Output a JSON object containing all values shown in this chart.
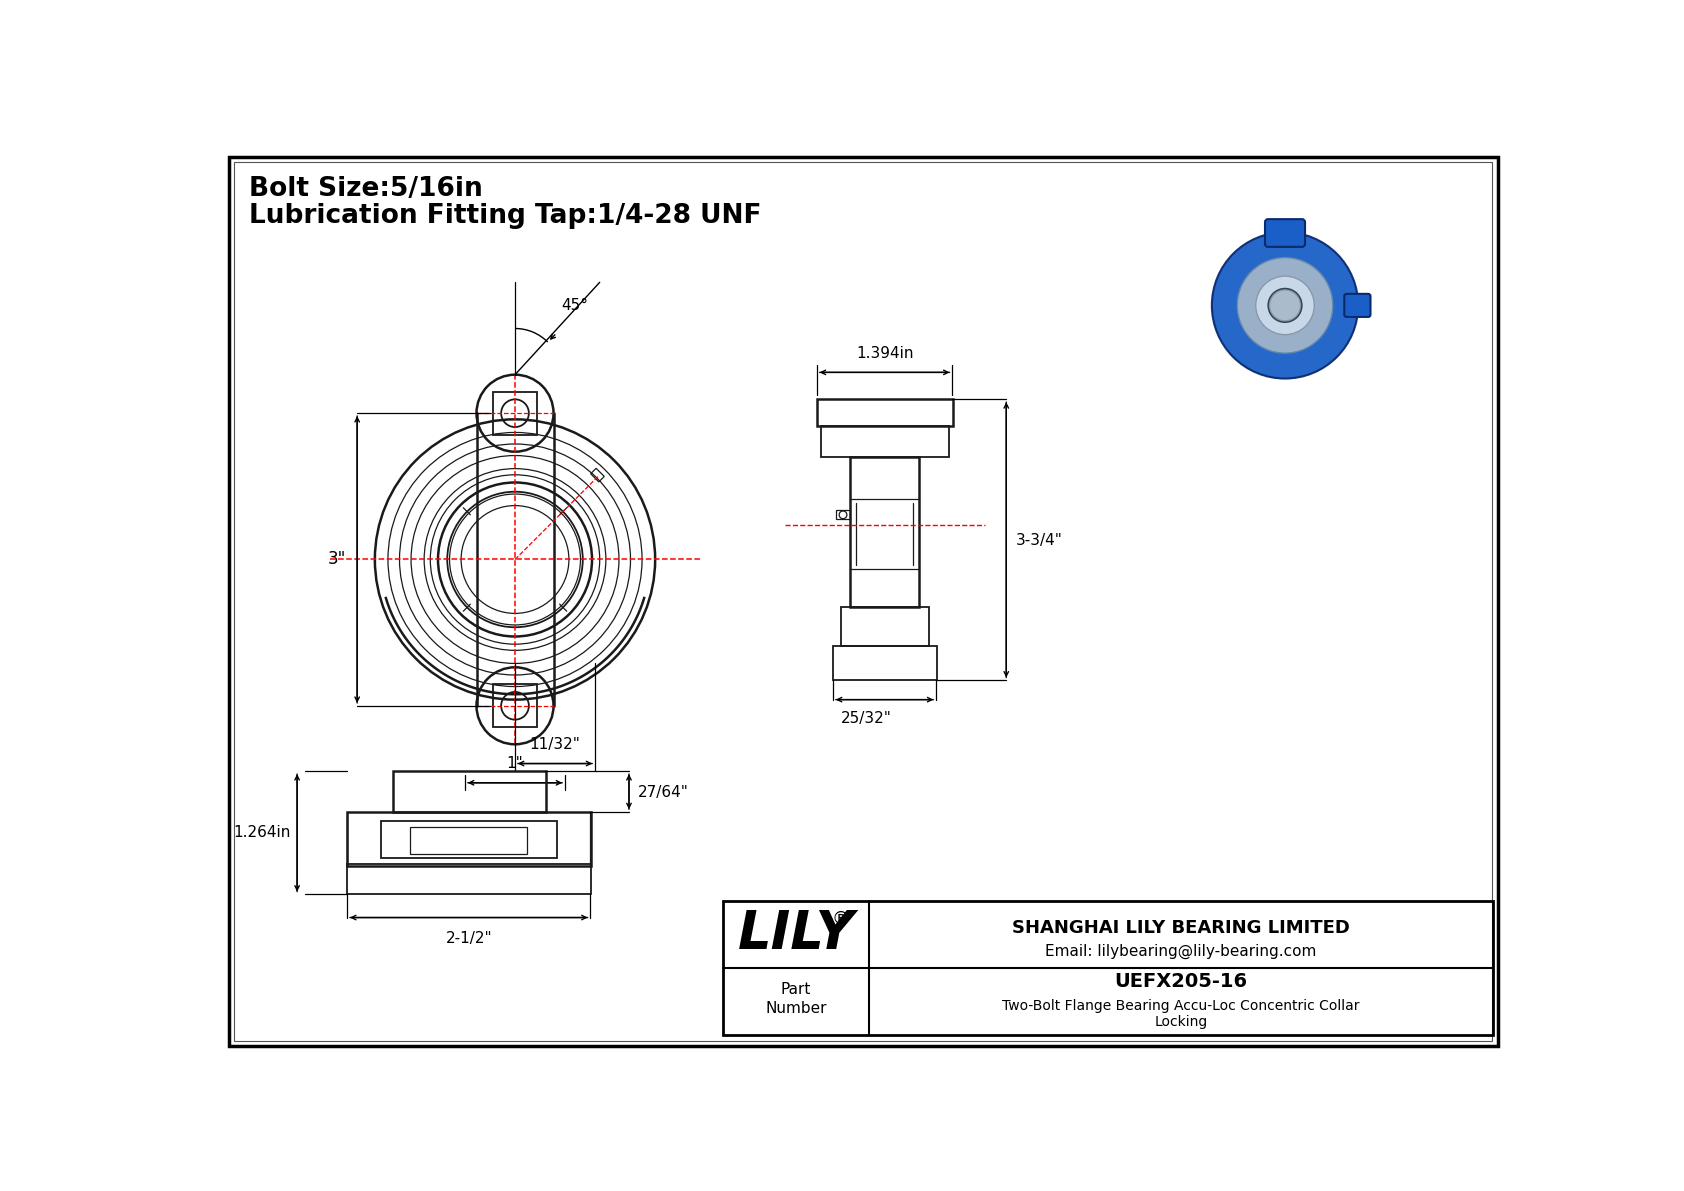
{
  "bg_color": "#ffffff",
  "line_color": "#1a1a1a",
  "center_color": "#ff0000",
  "title_text1": "Bolt Size:5/16in",
  "title_text2": "Lubrication Fitting Tap:1/4-28 UNF",
  "company": "SHANGHAI LILY BEARING LIMITED",
  "email": "Email: lilybearing@lily-bearing.com",
  "part_number": "UEFX205-16",
  "description": "Two-Bolt Flange Bearing Accu-Loc Concentric Collar",
  "description2": "Locking",
  "part_label": "Part\nNumber",
  "logo": "LILY",
  "registered": "®",
  "dim_45": "45°",
  "dim_3": "3\"",
  "dim_11_32": "11/32\"",
  "dim_1": "1\"",
  "dim_1394": "1.394in",
  "dim_3_3_4": "3-3/4\"",
  "dim_25_32": "25/32\"",
  "dim_1264": "1.264in",
  "dim_27_64": "27/64\"",
  "dim_2_1_2": "2-1/2\""
}
